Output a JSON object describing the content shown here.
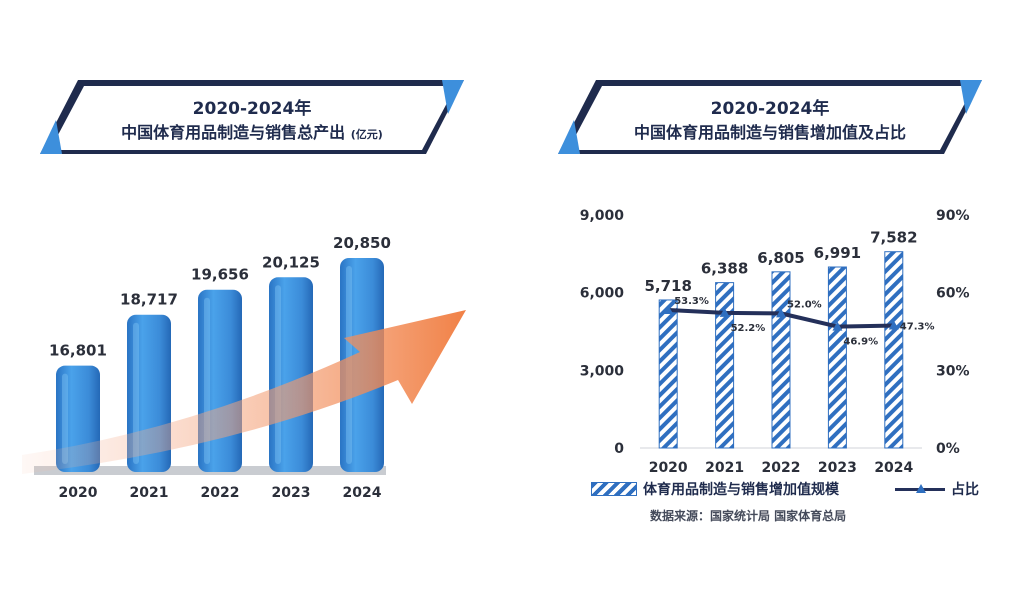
{
  "left_panel": {
    "title_line1": "2020-2024年",
    "title_line2": "中国体育用品制造与销售总产出",
    "title_unit": "(亿元)"
  },
  "right_panel": {
    "title_line1": "2020-2024年",
    "title_line2": "中国体育用品制造与销售增加值及占比",
    "source": "数据来源：国家统计局 国家体育总局"
  },
  "colors": {
    "navy": "#1f2b4d",
    "bar_blue": "#3d8fdc",
    "stripe_blue": "#2f6fc0",
    "arrow_orange": "#f07a3c",
    "line_navy": "#24305a"
  },
  "chart_data": [
    {
      "type": "bar",
      "categories": [
        "2020",
        "2021",
        "2022",
        "2023",
        "2024"
      ],
      "values": [
        16801,
        18717,
        19656,
        20125,
        20850
      ],
      "value_labels": [
        "16,801",
        "18,717",
        "19,656",
        "20,125",
        "20,850"
      ],
      "title": "2020-2024年 中国体育用品制造与销售总产出(亿元)",
      "xlabel": "",
      "ylabel": "",
      "decoration": "rising orange arrow"
    },
    {
      "type": "bar",
      "categories": [
        "2020",
        "2021",
        "2022",
        "2023",
        "2024"
      ],
      "series": [
        {
          "name": "体育用品制造与销售增加值规模",
          "type": "bar",
          "axis": "left",
          "values": [
            5718,
            6388,
            6805,
            6991,
            7582
          ],
          "labels": [
            "5,718",
            "6,388",
            "6,805",
            "6,991",
            "7,582"
          ]
        },
        {
          "name": "占比",
          "type": "line",
          "axis": "right",
          "values": [
            53.3,
            52.2,
            52.0,
            46.9,
            47.3
          ],
          "labels": [
            "53.3%",
            "52.2%",
            "52.0%",
            "46.9%",
            "47.3%"
          ]
        }
      ],
      "y_left": {
        "range": [
          0,
          9000
        ],
        "ticks": [
          "0",
          "3,000",
          "6,000",
          "9,000"
        ]
      },
      "y_right": {
        "range": [
          0,
          90
        ],
        "ticks": [
          "0%",
          "30%",
          "60%",
          "90%"
        ]
      },
      "title": "2020-2024年 中国体育用品制造与销售增加值及占比",
      "legend_position": "bottom",
      "grid": false
    }
  ]
}
